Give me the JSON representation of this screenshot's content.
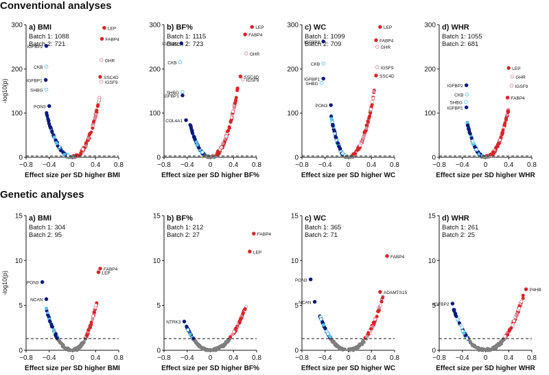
{
  "sections": {
    "conventional": "Conventional analyses",
    "genetic": "Genetic analyses"
  },
  "colors": {
    "dark_blue": "#0d1a7a",
    "light_blue": "#5bc0e8",
    "red": "#d62728",
    "pink": "#d98a9c",
    "grey": "#7f7f7f",
    "dark_grey": "#333333"
  },
  "chart_data": [
    {
      "type": "scatter",
      "section": "conventional",
      "panel": "a) BMI",
      "title": "a) BMI",
      "xlabel": "Effect size per SD higher BMI",
      "ylabel": "-log10(p)",
      "xlim": [
        -0.8,
        0.8
      ],
      "ylim": [
        0,
        300
      ],
      "yticks": [
        0,
        100,
        200,
        300
      ],
      "threshold": 3,
      "batch_text": [
        "Batch 1: 1088",
        "Batch 2: 721"
      ],
      "labeled_points": [
        {
          "label": "LEP",
          "x": 0.55,
          "y": 293,
          "color": "red",
          "filled": true
        },
        {
          "label": "FABP4",
          "x": 0.51,
          "y": 268,
          "color": "red",
          "filled": true
        },
        {
          "label": "GHR",
          "x": 0.5,
          "y": 220,
          "color": "pink",
          "filled": false
        },
        {
          "label": "SSC4D",
          "x": 0.48,
          "y": 182,
          "color": "red",
          "filled": true
        },
        {
          "label": "IGSF9",
          "x": 0.5,
          "y": 171,
          "color": "pink",
          "filled": false
        },
        {
          "label": "IGFBP2",
          "x": -0.45,
          "y": 252,
          "color": "dark_blue",
          "filled": true
        },
        {
          "label": "CKB",
          "x": -0.45,
          "y": 205,
          "color": "light_blue",
          "filled": false
        },
        {
          "label": "IGFBP1",
          "x": -0.46,
          "y": 175,
          "color": "dark_blue",
          "filled": true
        },
        {
          "label": "SHBG",
          "x": -0.45,
          "y": 153,
          "color": "light_blue",
          "filled": false
        },
        {
          "label": "PON3",
          "x": -0.4,
          "y": 116,
          "color": "dark_blue",
          "filled": true
        }
      ],
      "cloud": {
        "left": -0.45,
        "right": 0.48,
        "ymax_left": 100,
        "ymax_right": 140
      }
    },
    {
      "type": "scatter",
      "section": "conventional",
      "panel": "b) BF%",
      "title": "b) BF%",
      "xlabel": "Effect size per SD higher BF%",
      "ylabel": "-log10(p)",
      "xlim": [
        -0.8,
        0.8
      ],
      "ylim": [
        0,
        300
      ],
      "yticks": [
        0,
        100,
        200,
        300
      ],
      "threshold": 3,
      "batch_text": [
        "Batch 1: 1115",
        "Batch 2: 723"
      ],
      "labeled_points": [
        {
          "label": "LEP",
          "x": 0.72,
          "y": 295,
          "color": "red",
          "filled": true
        },
        {
          "label": "FABP4",
          "x": 0.6,
          "y": 278,
          "color": "red",
          "filled": true
        },
        {
          "label": "IGFBP2",
          "x": -0.5,
          "y": 258,
          "color": "dark_blue",
          "filled": true
        },
        {
          "label": "GHR",
          "x": 0.62,
          "y": 235,
          "color": "pink",
          "filled": false
        },
        {
          "label": "CKB",
          "x": -0.52,
          "y": 215,
          "color": "light_blue",
          "filled": false
        },
        {
          "label": "SSC4D",
          "x": 0.52,
          "y": 183,
          "color": "red",
          "filled": true
        },
        {
          "label": "IGSF9",
          "x": 0.56,
          "y": 176,
          "color": "pink",
          "filled": false
        },
        {
          "label": "SHBG",
          "x": -0.48,
          "y": 148,
          "color": "light_blue",
          "filled": false
        },
        {
          "label": "IGFBP1",
          "x": -0.48,
          "y": 140,
          "color": "dark_blue",
          "filled": true
        },
        {
          "label": "COL4A1",
          "x": -0.42,
          "y": 84,
          "color": "dark_blue",
          "filled": true
        }
      ],
      "cloud": {
        "left": -0.35,
        "right": 0.48,
        "ymax_left": 75,
        "ymax_right": 160
      }
    },
    {
      "type": "scatter",
      "section": "conventional",
      "panel": "c) WC",
      "title": "c) WC",
      "xlabel": "Effect size per SD higher WC",
      "ylabel": "-log10(p)",
      "xlim": [
        -0.8,
        0.8
      ],
      "ylim": [
        0,
        300
      ],
      "yticks": [
        0,
        100,
        200,
        300
      ],
      "threshold": 3,
      "batch_text": [
        "Batch 1: 1099",
        "Batch 2: 709"
      ],
      "labeled_points": [
        {
          "label": "LEP",
          "x": 0.55,
          "y": 295,
          "color": "red",
          "filled": true
        },
        {
          "label": "FABP4",
          "x": 0.48,
          "y": 265,
          "color": "red",
          "filled": true
        },
        {
          "label": "GHR",
          "x": 0.5,
          "y": 250,
          "color": "pink",
          "filled": false
        },
        {
          "label": "IGFBP2",
          "x": -0.43,
          "y": 262,
          "color": "dark_blue",
          "filled": true
        },
        {
          "label": "CKB",
          "x": -0.43,
          "y": 212,
          "color": "light_blue",
          "filled": false
        },
        {
          "label": "IGSF9",
          "x": 0.5,
          "y": 204,
          "color": "pink",
          "filled": false
        },
        {
          "label": "SSC4D",
          "x": 0.48,
          "y": 185,
          "color": "red",
          "filled": true
        },
        {
          "label": "IGFBP1",
          "x": -0.43,
          "y": 178,
          "color": "dark_blue",
          "filled": true
        },
        {
          "label": "SHBG",
          "x": -0.46,
          "y": 168,
          "color": "light_blue",
          "filled": false
        },
        {
          "label": "PON3",
          "x": -0.3,
          "y": 118,
          "color": "dark_blue",
          "filled": true
        }
      ],
      "cloud": {
        "left": -0.3,
        "right": 0.45,
        "ymax_left": 95,
        "ymax_right": 150
      }
    },
    {
      "type": "scatter",
      "section": "conventional",
      "panel": "d) WHR",
      "title": "d) WHR",
      "xlabel": "Effect size per SD higher WHR",
      "ylabel": "-log10(p)",
      "xlim": [
        -0.8,
        0.8
      ],
      "ylim": [
        0,
        300
      ],
      "yticks": [
        0,
        100,
        200,
        300
      ],
      "threshold": 3,
      "batch_text": [
        "Batch 1: 1055",
        "Batch 2: 681"
      ],
      "labeled_points": [
        {
          "label": "LEP",
          "x": 0.4,
          "y": 202,
          "color": "red",
          "filled": true
        },
        {
          "label": "GHR",
          "x": 0.46,
          "y": 183,
          "color": "pink",
          "filled": false
        },
        {
          "label": "IGFBP2",
          "x": -0.33,
          "y": 163,
          "color": "dark_blue",
          "filled": true
        },
        {
          "label": "IGSF9",
          "x": 0.45,
          "y": 162,
          "color": "pink",
          "filled": false
        },
        {
          "label": "CKB",
          "x": -0.32,
          "y": 142,
          "color": "light_blue",
          "filled": false
        },
        {
          "label": "FABP4",
          "x": 0.38,
          "y": 135,
          "color": "red",
          "filled": true
        },
        {
          "label": "SHBG",
          "x": -0.34,
          "y": 125,
          "color": "light_blue",
          "filled": false
        },
        {
          "label": "IGFBP1",
          "x": -0.33,
          "y": 113,
          "color": "dark_blue",
          "filled": true
        }
      ],
      "cloud": {
        "left": -0.32,
        "right": 0.4,
        "ymax_left": 80,
        "ymax_right": 110
      }
    },
    {
      "type": "scatter",
      "section": "genetic",
      "panel": "a) BMI",
      "title": "a) BMI",
      "xlabel": "Effect size per SD higher BMI",
      "ylabel": "-log10(p)",
      "xlim": [
        -0.8,
        0.8
      ],
      "ylim": [
        0,
        15
      ],
      "yticks": [
        0,
        5,
        10,
        15
      ],
      "threshold": 1.3,
      "batch_text": [
        "Batch 1: 304",
        "Batch 2: 95"
      ],
      "labeled_points": [
        {
          "label": "FABP4",
          "x": 0.48,
          "y": 9.1,
          "color": "red",
          "filled": true
        },
        {
          "label": "LEP",
          "x": 0.45,
          "y": 8.7,
          "color": "red",
          "filled": true
        },
        {
          "label": "PON3",
          "x": -0.52,
          "y": 7.6,
          "color": "dark_blue",
          "filled": true
        },
        {
          "label": "NCAN",
          "x": -0.45,
          "y": 5.7,
          "color": "dark_blue",
          "filled": true
        }
      ],
      "cloud": {
        "left": -0.45,
        "right": 0.42,
        "ymax_left": 4.6,
        "ymax_right": 5.3
      }
    },
    {
      "type": "scatter",
      "section": "genetic",
      "panel": "b) BF%",
      "title": "b) BF%",
      "xlabel": "Effect size per SD higher BF%",
      "ylabel": "-log10(p)",
      "xlim": [
        -0.8,
        0.8
      ],
      "ylim": [
        0,
        15
      ],
      "yticks": [
        0,
        5,
        10,
        15
      ],
      "threshold": 1.3,
      "batch_text": [
        "Batch 1: 212",
        "Batch 2: 27"
      ],
      "labeled_points": [
        {
          "label": "FABP4",
          "x": 0.75,
          "y": 13.0,
          "color": "red",
          "filled": true
        },
        {
          "label": "LEP",
          "x": 0.68,
          "y": 11.0,
          "color": "red",
          "filled": true
        },
        {
          "label": "NTRK3",
          "x": -0.45,
          "y": 3.2,
          "color": "dark_blue",
          "filled": true
        }
      ],
      "cloud": {
        "left": -0.42,
        "right": 0.62,
        "ymax_left": 2.8,
        "ymax_right": 5.0
      }
    },
    {
      "type": "scatter",
      "section": "genetic",
      "panel": "c) WC",
      "title": "c) WC",
      "xlabel": "Effect size per SD higher WC",
      "ylabel": "-log10(p)",
      "xlim": [
        -0.8,
        0.8
      ],
      "ylim": [
        0,
        15
      ],
      "yticks": [
        0,
        5,
        10,
        15
      ],
      "threshold": 1.3,
      "batch_text": [
        "Batch 1: 365",
        "Batch 2: 71"
      ],
      "labeled_points": [
        {
          "label": "FABP4",
          "x": 0.67,
          "y": 10.5,
          "color": "red",
          "filled": true
        },
        {
          "label": "PON3",
          "x": -0.65,
          "y": 7.9,
          "color": "dark_blue",
          "filled": true
        },
        {
          "label": "ADAMTS15",
          "x": 0.55,
          "y": 6.5,
          "color": "red",
          "filled": true
        },
        {
          "label": "NCAN",
          "x": -0.58,
          "y": 5.4,
          "color": "dark_blue",
          "filled": true
        }
      ],
      "cloud": {
        "left": -0.5,
        "right": 0.6,
        "ymax_left": 4.0,
        "ymax_right": 6.0
      }
    },
    {
      "type": "scatter",
      "section": "genetic",
      "panel": "d) WHR",
      "title": "d) WHR",
      "xlabel": "Effect size per SD higher WHR",
      "ylabel": "-log10(p)",
      "xlim": [
        -0.8,
        0.8
      ],
      "ylim": [
        0,
        15
      ],
      "yticks": [
        0,
        5,
        10,
        15
      ],
      "threshold": 1.3,
      "batch_text": [
        "Batch 1: 261",
        "Batch 2: 25"
      ],
      "labeled_points": [
        {
          "label": "P4HB",
          "x": 0.7,
          "y": 6.8,
          "color": "red",
          "filled": true
        },
        {
          "label": "IGFBP2",
          "x": -0.57,
          "y": 5.2,
          "color": "dark_blue",
          "filled": true
        }
      ],
      "cloud": {
        "left": -0.55,
        "right": 0.65,
        "ymax_left": 4.6,
        "ymax_right": 6.0
      }
    }
  ]
}
